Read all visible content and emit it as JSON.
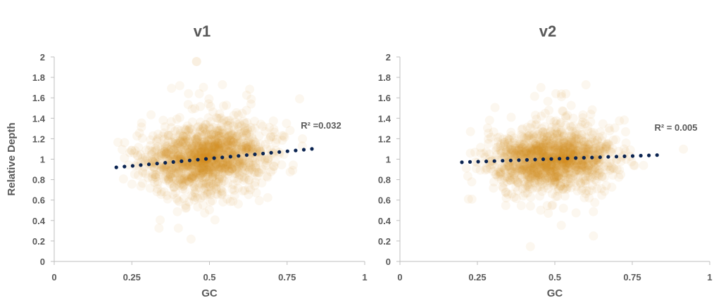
{
  "chart_data": [
    {
      "type": "scatter",
      "title": "v1",
      "xlabel": "GC",
      "ylabel": "Relative Depth",
      "xlim": [
        0,
        1
      ],
      "ylim": [
        0,
        2
      ],
      "xticks": [
        0,
        0.25,
        0.5,
        0.75,
        1
      ],
      "xtick_labels": [
        "0",
        "0.25",
        "0.5",
        "0.75",
        "1"
      ],
      "yticks": [
        0,
        0.2,
        0.4,
        0.6,
        0.8,
        1,
        1.2,
        1.4,
        1.6,
        1.8,
        2
      ],
      "ytick_labels": [
        "0",
        "0.2",
        "0.4",
        "0.6",
        "0.8",
        "1",
        "1.2",
        "1.4",
        "1.6",
        "1.8",
        "2"
      ],
      "points_color": "#D9901A",
      "trendline": {
        "x": [
          0.2,
          0.83
        ],
        "y": [
          0.92,
          1.1
        ],
        "color": "#0B2451",
        "style": "dotted"
      },
      "r_squared_label": "R² =0.032",
      "cloud": {
        "x_center": 0.49,
        "y_center": 1.02,
        "x_spread": 0.1,
        "y_spread": 0.16,
        "n": 1400,
        "seed": 11
      }
    },
    {
      "type": "scatter",
      "title": "v2",
      "xlabel": "GC",
      "ylabel": "",
      "xlim": [
        0,
        1
      ],
      "ylim": [
        0,
        2
      ],
      "xticks": [
        0,
        0.25,
        0.5,
        0.75,
        1
      ],
      "xtick_labels": [
        "0",
        "0.25",
        "0.5",
        "0.75",
        "1"
      ],
      "yticks": [
        0,
        0.2,
        0.4,
        0.6,
        0.8,
        1,
        1.2,
        1.4,
        1.6,
        1.8,
        2
      ],
      "ytick_labels": [
        "0",
        "0.2",
        "0.4",
        "0.6",
        "0.8",
        "1",
        "1.2",
        "1.4",
        "1.6",
        "1.8",
        "2"
      ],
      "points_color": "#D9901A",
      "trendline": {
        "x": [
          0.2,
          0.83
        ],
        "y": [
          0.97,
          1.04
        ],
        "color": "#0B2451",
        "style": "dotted"
      },
      "r_squared_label": "R² = 0.005",
      "cloud": {
        "x_center": 0.49,
        "y_center": 1.0,
        "x_spread": 0.1,
        "y_spread": 0.15,
        "n": 1400,
        "seed": 29
      }
    }
  ]
}
